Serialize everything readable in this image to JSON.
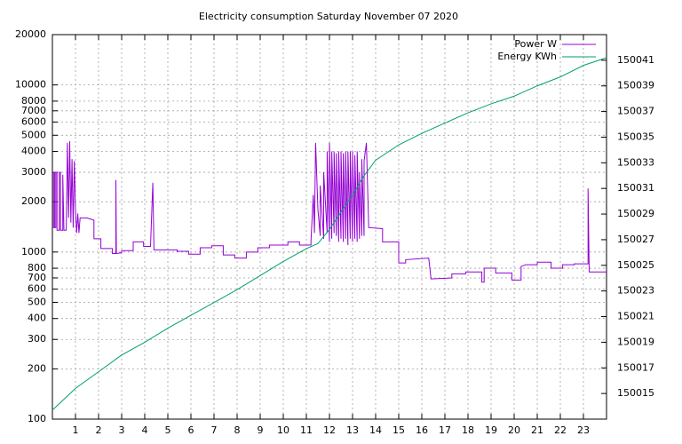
{
  "chart_data": {
    "type": "line",
    "title": "Electricity consumption Saturday November 07 2020",
    "xlim": [
      0,
      24
    ],
    "xticks": [
      1,
      2,
      3,
      4,
      5,
      6,
      7,
      8,
      9,
      10,
      11,
      12,
      13,
      14,
      15,
      16,
      17,
      18,
      19,
      20,
      21,
      22,
      23
    ],
    "ylim": [
      100,
      20000
    ],
    "log_y": true,
    "yticks": [
      100,
      200,
      300,
      400,
      500,
      600,
      700,
      800,
      1000,
      2000,
      3000,
      4000,
      5000,
      6000,
      7000,
      8000,
      10000,
      20000
    ],
    "y2lim": [
      150013,
      150043
    ],
    "y2ticks": [
      150015,
      150017,
      150019,
      150021,
      150023,
      150025,
      150027,
      150029,
      150031,
      150033,
      150035,
      150037,
      150039,
      150041
    ],
    "grid": true,
    "legend": "top-right",
    "series": [
      {
        "name": "Power W",
        "color": "#9400d3",
        "x": [
          0,
          0.05,
          0.05,
          0.1,
          0.1,
          0.15,
          0.15,
          0.2,
          0.2,
          0.3,
          0.3,
          0.35,
          0.35,
          0.45,
          0.45,
          0.5,
          0.6,
          0.65,
          0.7,
          0.75,
          0.8,
          0.85,
          0.9,
          0.95,
          1.0,
          1.05,
          1.1,
          1.15,
          1.2,
          1.5,
          1.8,
          1.8,
          2.1,
          2.1,
          2.6,
          2.6,
          2.75,
          2.75,
          2.77,
          3.0,
          3.0,
          3.5,
          3.5,
          3.95,
          3.95,
          4.25,
          4.35,
          4.4,
          5.4,
          5.4,
          5.9,
          5.9,
          6.4,
          6.4,
          6.9,
          6.9,
          7.4,
          7.4,
          7.9,
          7.9,
          8.4,
          8.4,
          8.9,
          8.9,
          9.4,
          9.4,
          10.2,
          10.2,
          10.7,
          10.7,
          11.2,
          11.2,
          11.3,
          11.35,
          11.4,
          11.5,
          11.6,
          11.6,
          11.75,
          11.75,
          11.9,
          11.9,
          12.0,
          12.0,
          12.1,
          12.1,
          12.2,
          12.2,
          12.3,
          12.3,
          12.4,
          12.4,
          12.5,
          12.5,
          12.6,
          12.6,
          12.7,
          12.7,
          12.8,
          12.8,
          12.9,
          12.9,
          13.0,
          13.0,
          13.1,
          13.1,
          13.2,
          13.2,
          13.3,
          13.3,
          13.4,
          13.4,
          13.5,
          13.5,
          13.6,
          13.7,
          14.3,
          14.3,
          15.0,
          15.0,
          15.3,
          15.3,
          16.3,
          16.4,
          17.3,
          17.3,
          17.9,
          17.9,
          18.6,
          18.6,
          18.7,
          18.7,
          19.2,
          19.2,
          19.9,
          19.9,
          20.3,
          20.3,
          20.5,
          21.0,
          21.0,
          21.6,
          21.6,
          22.1,
          22.1,
          22.6,
          22.6,
          23.2,
          23.2,
          23.25,
          24
        ],
        "values": [
          1400,
          1400,
          3000,
          3000,
          1400,
          1400,
          3000,
          3000,
          1350,
          1350,
          3000,
          3000,
          1350,
          1350,
          2900,
          1350,
          1350,
          4500,
          1600,
          4600,
          1500,
          3600,
          1400,
          3500,
          1800,
          1300,
          1700,
          1300,
          1600,
          1600,
          1550,
          1200,
          1200,
          1050,
          1050,
          980,
          980,
          2700,
          980,
          990,
          1020,
          1020,
          1150,
          1150,
          1080,
          1080,
          2600,
          1030,
          1030,
          1010,
          1010,
          970,
          970,
          1060,
          1060,
          1090,
          1090,
          960,
          960,
          920,
          920,
          1000,
          1000,
          1060,
          1060,
          1100,
          1100,
          1150,
          1150,
          1100,
          1100,
          1170,
          2200,
          1300,
          4500,
          1800,
          1250,
          2500,
          1200,
          3000,
          1300,
          4000,
          1150,
          4500,
          1200,
          4000,
          1300,
          4000,
          1250,
          3900,
          1150,
          4000,
          1200,
          4000,
          1150,
          3900,
          1200,
          4000,
          1100,
          4000,
          1200,
          4000,
          1150,
          4000,
          1200,
          3800,
          1150,
          4000,
          1200,
          3000,
          1250,
          3600,
          1250,
          3500,
          4500,
          1400,
          1380,
          1150,
          1150,
          860,
          860,
          900,
          920,
          690,
          700,
          740,
          740,
          760,
          760,
          660,
          660,
          800,
          800,
          750,
          750,
          680,
          680,
          820,
          840,
          840,
          870,
          870,
          800,
          800,
          840,
          840,
          850,
          850,
          2400,
          760,
          760
        ]
      },
      {
        "name": "Energy KWh",
        "color": "#009e73",
        "axis": "y2",
        "x": [
          0,
          1,
          2,
          3,
          4,
          5,
          6,
          7,
          8,
          9,
          10,
          11,
          11.5,
          12,
          13,
          13.5,
          14,
          15,
          16,
          17,
          18,
          19,
          20,
          21,
          22,
          23,
          24
        ],
        "values": [
          150013.7,
          150015.4,
          150016.7,
          150018.0,
          150019.0,
          150020.1,
          150021.1,
          150022.1,
          150023.1,
          150024.2,
          150025.3,
          150026.3,
          150026.7,
          150027.8,
          150030.5,
          150032.0,
          150033.2,
          150034.4,
          150035.3,
          150036.1,
          150036.9,
          150037.6,
          150038.2,
          150039.0,
          150039.7,
          150040.6,
          150041.2
        ]
      }
    ]
  }
}
